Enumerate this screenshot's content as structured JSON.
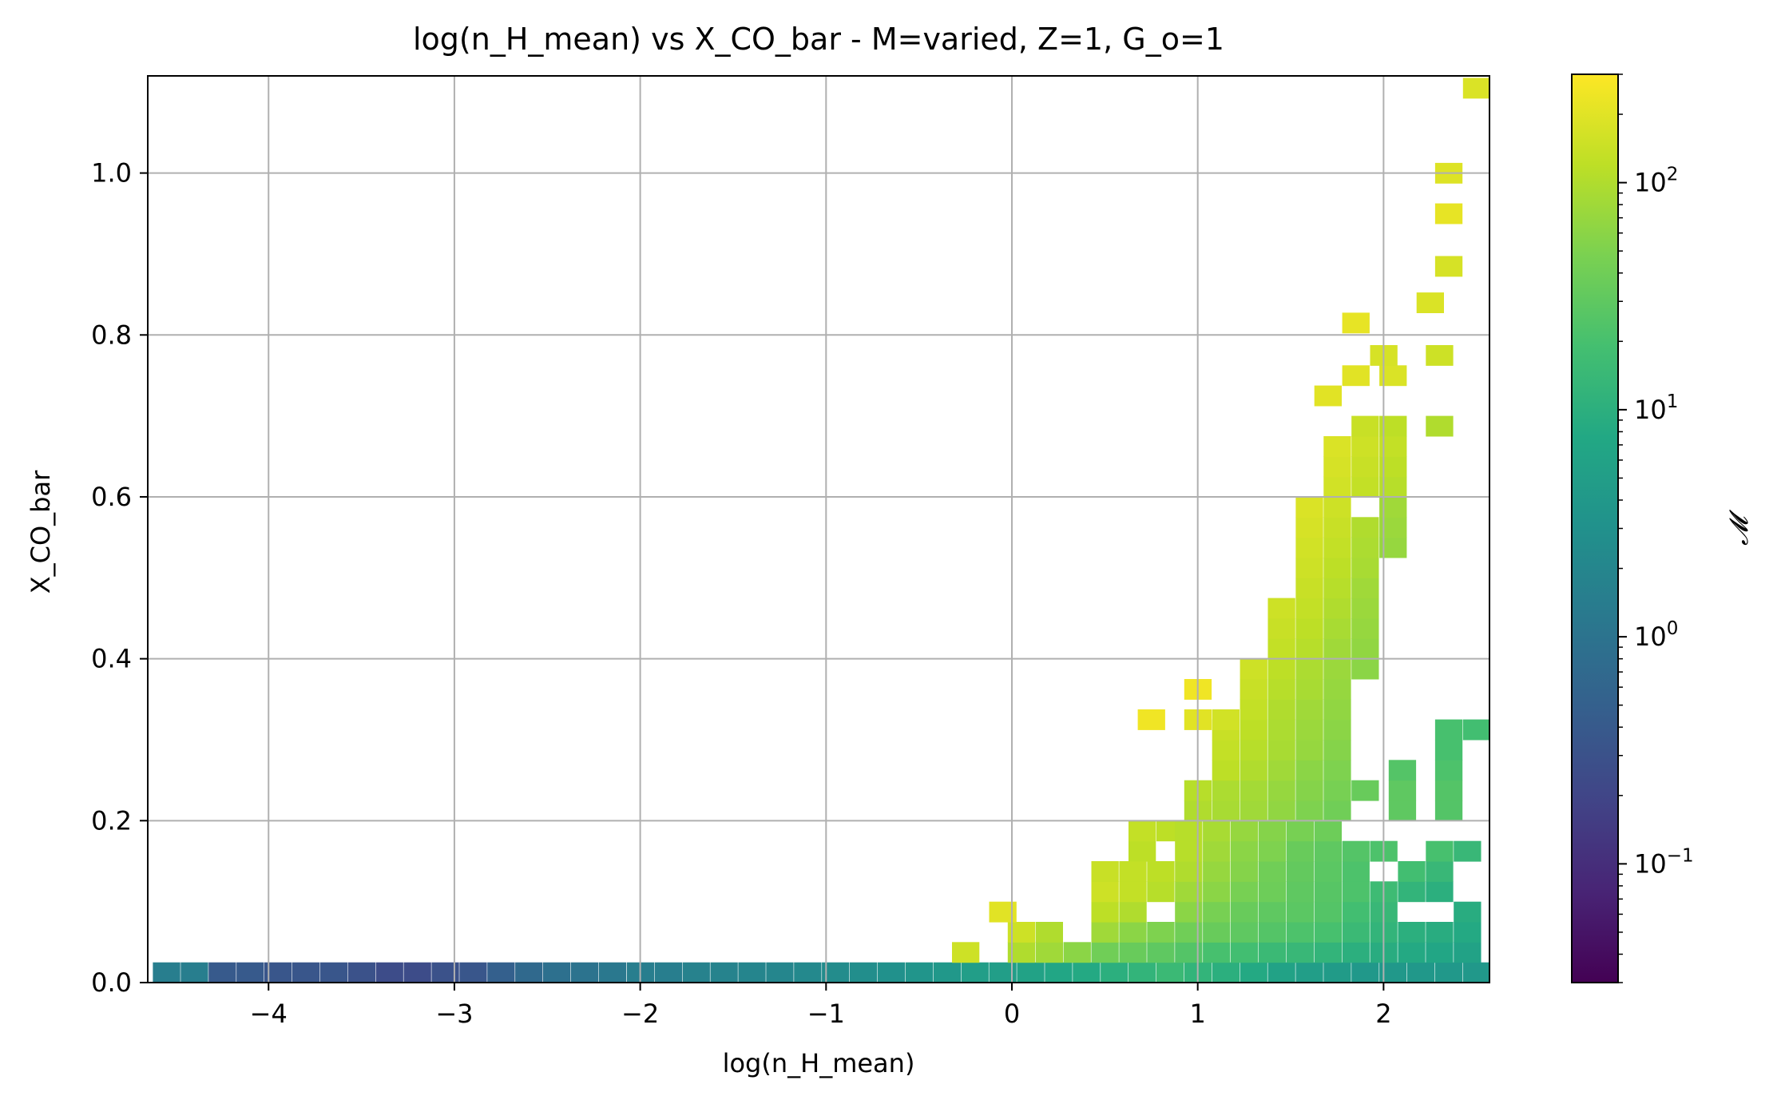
{
  "chart_data": {
    "type": "heatmap",
    "title": "log(n_H_mean) vs X_CO_bar - M=varied, Z=1, G_o=1",
    "xlabel": "log(n_H_mean)",
    "ylabel": "X_CO_bar",
    "colorbar_label": "𝓜",
    "colormap": "viridis",
    "color_scale": "log",
    "color_range": [
      0.03,
      300
    ],
    "grid": true,
    "xlim": [
      -4.65,
      2.57
    ],
    "ylim": [
      0.0,
      1.12
    ],
    "x_ticks": [
      -4,
      -3,
      -2,
      -1,
      0,
      1,
      2
    ],
    "x_tick_labels": [
      "−4",
      "−3",
      "−2",
      "−1",
      "0",
      "1",
      "2"
    ],
    "y_ticks": [
      0.0,
      0.2,
      0.4,
      0.6,
      0.8,
      1.0
    ],
    "y_tick_labels": [
      "0.0",
      "0.2",
      "0.4",
      "0.6",
      "0.8",
      "1.0"
    ],
    "colorbar_ticks": [
      {
        "value": 0.1,
        "base": "10",
        "exp": "−1"
      },
      {
        "value": 1,
        "base": "10",
        "exp": "0"
      },
      {
        "value": 10,
        "base": "10",
        "exp": "1"
      },
      {
        "value": 100,
        "base": "10",
        "exp": "2"
      }
    ],
    "bin_size": {
      "dx": 0.145,
      "dy": 0.025
    },
    "cells": [
      [
        -4.55,
        0.0125,
        1.5
      ],
      [
        -4.4,
        0.0125,
        1.5
      ],
      [
        -4.25,
        0.0125,
        0.4
      ],
      [
        -4.1,
        0.0125,
        0.4
      ],
      [
        -3.95,
        0.0125,
        0.35
      ],
      [
        -3.8,
        0.0125,
        0.35
      ],
      [
        -3.65,
        0.0125,
        0.35
      ],
      [
        -3.5,
        0.0125,
        0.3
      ],
      [
        -3.35,
        0.0125,
        0.25
      ],
      [
        -3.2,
        0.0125,
        0.25
      ],
      [
        -3.05,
        0.0125,
        0.3
      ],
      [
        -2.9,
        0.0125,
        0.35
      ],
      [
        -2.75,
        0.0125,
        0.5
      ],
      [
        -2.6,
        0.0125,
        0.7
      ],
      [
        -2.45,
        0.0125,
        0.9
      ],
      [
        -2.3,
        0.0125,
        1.0
      ],
      [
        -2.15,
        0.0125,
        1.2
      ],
      [
        -2.0,
        0.0125,
        1.5
      ],
      [
        -1.85,
        0.0125,
        1.5
      ],
      [
        -1.7,
        0.0125,
        1.7
      ],
      [
        -1.55,
        0.0125,
        1.8
      ],
      [
        -1.4,
        0.0125,
        1.9
      ],
      [
        -1.25,
        0.0125,
        2.0
      ],
      [
        -1.1,
        0.0125,
        2.2
      ],
      [
        -0.95,
        0.0125,
        2.5
      ],
      [
        -0.8,
        0.0125,
        2.7
      ],
      [
        -0.65,
        0.0125,
        3.0
      ],
      [
        -0.5,
        0.0125,
        3.5
      ],
      [
        -0.35,
        0.0125,
        4.0
      ],
      [
        -0.2,
        0.0125,
        5.0
      ],
      [
        -0.05,
        0.0125,
        5.0
      ],
      [
        0.1,
        0.0125,
        6.0
      ],
      [
        0.25,
        0.0125,
        7.0
      ],
      [
        0.4,
        0.0125,
        8.0
      ],
      [
        0.55,
        0.0125,
        10.0
      ],
      [
        0.7,
        0.0125,
        12.0
      ],
      [
        0.85,
        0.0125,
        15.0
      ],
      [
        1.0,
        0.0125,
        12.0
      ],
      [
        1.15,
        0.0125,
        10.0
      ],
      [
        1.3,
        0.0125,
        8.0
      ],
      [
        1.45,
        0.0125,
        6.0
      ],
      [
        1.6,
        0.0125,
        5.0
      ],
      [
        1.75,
        0.0125,
        4.5
      ],
      [
        1.9,
        0.0125,
        4.0
      ],
      [
        2.05,
        0.0125,
        4.0
      ],
      [
        2.2,
        0.0125,
        4.0
      ],
      [
        2.35,
        0.0125,
        4.0
      ],
      [
        2.5,
        0.0125,
        4.0
      ],
      [
        -0.25,
        0.0375,
        150
      ],
      [
        0.05,
        0.0375,
        100
      ],
      [
        0.2,
        0.0375,
        80
      ],
      [
        0.35,
        0.0375,
        60
      ],
      [
        0.5,
        0.0375,
        40
      ],
      [
        0.65,
        0.0375,
        35
      ],
      [
        0.8,
        0.0375,
        30
      ],
      [
        0.95,
        0.0375,
        25
      ],
      [
        1.1,
        0.0375,
        20
      ],
      [
        1.25,
        0.0375,
        18
      ],
      [
        1.4,
        0.0375,
        15
      ],
      [
        1.55,
        0.0375,
        14
      ],
      [
        1.7,
        0.0375,
        12
      ],
      [
        1.85,
        0.0375,
        10
      ],
      [
        2.0,
        0.0375,
        9
      ],
      [
        2.15,
        0.0375,
        8
      ],
      [
        2.3,
        0.0375,
        7
      ],
      [
        2.45,
        0.0375,
        6
      ],
      [
        0.05,
        0.0625,
        150
      ],
      [
        0.2,
        0.0625,
        100
      ],
      [
        0.5,
        0.0625,
        80
      ],
      [
        0.65,
        0.0625,
        60
      ],
      [
        0.8,
        0.0625,
        50
      ],
      [
        0.95,
        0.0625,
        40
      ],
      [
        1.1,
        0.0625,
        35
      ],
      [
        1.25,
        0.0625,
        30
      ],
      [
        1.4,
        0.0625,
        25
      ],
      [
        1.55,
        0.0625,
        22
      ],
      [
        1.7,
        0.0625,
        20
      ],
      [
        1.85,
        0.0625,
        15
      ],
      [
        2.0,
        0.0625,
        12
      ],
      [
        2.15,
        0.0625,
        10
      ],
      [
        2.3,
        0.0625,
        9
      ],
      [
        2.45,
        0.0625,
        8
      ],
      [
        -0.05,
        0.0875,
        200
      ],
      [
        0.5,
        0.0875,
        120
      ],
      [
        0.65,
        0.0875,
        100
      ],
      [
        0.95,
        0.0875,
        60
      ],
      [
        1.1,
        0.0875,
        45
      ],
      [
        1.25,
        0.0875,
        35
      ],
      [
        1.4,
        0.0875,
        30
      ],
      [
        1.55,
        0.0875,
        28
      ],
      [
        1.7,
        0.0875,
        25
      ],
      [
        1.85,
        0.0875,
        18
      ],
      [
        2.0,
        0.0875,
        14
      ],
      [
        2.45,
        0.0875,
        9
      ],
      [
        0.5,
        0.1125,
        150
      ],
      [
        0.65,
        0.1125,
        130
      ],
      [
        0.8,
        0.1125,
        110
      ],
      [
        0.95,
        0.1125,
        80
      ],
      [
        1.1,
        0.1125,
        60
      ],
      [
        1.25,
        0.1125,
        45
      ],
      [
        1.4,
        0.1125,
        38
      ],
      [
        1.55,
        0.1125,
        30
      ],
      [
        1.7,
        0.1125,
        26
      ],
      [
        1.85,
        0.1125,
        22
      ],
      [
        2.0,
        0.1125,
        16
      ],
      [
        2.15,
        0.1125,
        12
      ],
      [
        2.3,
        0.1125,
        10
      ],
      [
        0.5,
        0.1375,
        140
      ],
      [
        0.65,
        0.1375,
        130
      ],
      [
        0.8,
        0.1375,
        120
      ],
      [
        0.95,
        0.1375,
        100
      ],
      [
        1.1,
        0.1375,
        70
      ],
      [
        1.25,
        0.1375,
        55
      ],
      [
        1.4,
        0.1375,
        40
      ],
      [
        1.55,
        0.1375,
        32
      ],
      [
        1.7,
        0.1375,
        28
      ],
      [
        1.85,
        0.1375,
        22
      ],
      [
        2.15,
        0.1375,
        18
      ],
      [
        2.3,
        0.1375,
        14
      ],
      [
        0.7,
        0.1625,
        120
      ],
      [
        0.95,
        0.1625,
        110
      ],
      [
        1.1,
        0.1625,
        80
      ],
      [
        1.25,
        0.1625,
        60
      ],
      [
        1.4,
        0.1625,
        50
      ],
      [
        1.55,
        0.1625,
        35
      ],
      [
        1.7,
        0.1625,
        30
      ],
      [
        1.85,
        0.1625,
        25
      ],
      [
        2.0,
        0.1625,
        22
      ],
      [
        2.3,
        0.1625,
        20
      ],
      [
        2.45,
        0.1625,
        14
      ],
      [
        0.7,
        0.1875,
        130
      ],
      [
        0.85,
        0.1875,
        120
      ],
      [
        0.95,
        0.1875,
        110
      ],
      [
        1.1,
        0.1875,
        90
      ],
      [
        1.25,
        0.1875,
        70
      ],
      [
        1.4,
        0.1875,
        55
      ],
      [
        1.55,
        0.1875,
        45
      ],
      [
        1.7,
        0.1875,
        38
      ],
      [
        1.0,
        0.2125,
        100
      ],
      [
        1.15,
        0.2125,
        90
      ],
      [
        1.3,
        0.2125,
        80
      ],
      [
        1.45,
        0.2125,
        65
      ],
      [
        1.6,
        0.2125,
        50
      ],
      [
        1.75,
        0.2125,
        40
      ],
      [
        2.1,
        0.2125,
        30
      ],
      [
        2.35,
        0.2125,
        25
      ],
      [
        1.0,
        0.2375,
        110
      ],
      [
        1.15,
        0.2375,
        95
      ],
      [
        1.3,
        0.2375,
        85
      ],
      [
        1.45,
        0.2375,
        70
      ],
      [
        1.6,
        0.2375,
        55
      ],
      [
        1.75,
        0.2375,
        45
      ],
      [
        1.9,
        0.2375,
        35
      ],
      [
        2.1,
        0.2375,
        30
      ],
      [
        2.35,
        0.2375,
        25
      ],
      [
        1.15,
        0.2625,
        120
      ],
      [
        1.3,
        0.2625,
        100
      ],
      [
        1.45,
        0.2625,
        80
      ],
      [
        1.6,
        0.2625,
        60
      ],
      [
        1.75,
        0.2625,
        50
      ],
      [
        2.1,
        0.2625,
        25
      ],
      [
        2.35,
        0.2625,
        22
      ],
      [
        1.15,
        0.2875,
        130
      ],
      [
        1.3,
        0.2875,
        110
      ],
      [
        1.45,
        0.2875,
        90
      ],
      [
        1.6,
        0.2875,
        70
      ],
      [
        1.75,
        0.2875,
        55
      ],
      [
        2.35,
        0.2875,
        20
      ],
      [
        1.15,
        0.3125,
        140
      ],
      [
        1.3,
        0.3125,
        120
      ],
      [
        1.45,
        0.3125,
        95
      ],
      [
        1.6,
        0.3125,
        75
      ],
      [
        1.75,
        0.3125,
        60
      ],
      [
        2.35,
        0.3125,
        20
      ],
      [
        2.5,
        0.3125,
        18
      ],
      [
        0.75,
        0.325,
        250
      ],
      [
        1.0,
        0.325,
        200
      ],
      [
        1.15,
        0.325,
        160
      ],
      [
        1.3,
        0.3375,
        130
      ],
      [
        1.45,
        0.3375,
        100
      ],
      [
        1.6,
        0.3375,
        80
      ],
      [
        1.75,
        0.3375,
        65
      ],
      [
        1.0,
        0.3625,
        250
      ],
      [
        1.3,
        0.3625,
        140
      ],
      [
        1.45,
        0.3625,
        110
      ],
      [
        1.6,
        0.3625,
        90
      ],
      [
        1.75,
        0.3625,
        70
      ],
      [
        1.3,
        0.3875,
        150
      ],
      [
        1.45,
        0.3875,
        120
      ],
      [
        1.6,
        0.3875,
        95
      ],
      [
        1.75,
        0.3875,
        75
      ],
      [
        1.9,
        0.3875,
        60
      ],
      [
        1.45,
        0.4125,
        130
      ],
      [
        1.6,
        0.4125,
        110
      ],
      [
        1.75,
        0.4125,
        80
      ],
      [
        1.9,
        0.4125,
        65
      ],
      [
        1.45,
        0.4375,
        140
      ],
      [
        1.6,
        0.4375,
        120
      ],
      [
        1.75,
        0.4375,
        90
      ],
      [
        1.9,
        0.4375,
        70
      ],
      [
        1.45,
        0.4625,
        150
      ],
      [
        1.6,
        0.4625,
        130
      ],
      [
        1.75,
        0.4625,
        100
      ],
      [
        1.9,
        0.4625,
        75
      ],
      [
        1.6,
        0.4875,
        140
      ],
      [
        1.75,
        0.4875,
        110
      ],
      [
        1.9,
        0.4875,
        80
      ],
      [
        1.6,
        0.5125,
        150
      ],
      [
        1.75,
        0.5125,
        120
      ],
      [
        1.9,
        0.5125,
        90
      ],
      [
        1.6,
        0.5375,
        160
      ],
      [
        1.75,
        0.5375,
        130
      ],
      [
        1.9,
        0.5375,
        95
      ],
      [
        2.05,
        0.5375,
        70
      ],
      [
        1.6,
        0.5625,
        170
      ],
      [
        1.75,
        0.5625,
        140
      ],
      [
        1.9,
        0.5625,
        100
      ],
      [
        2.05,
        0.5625,
        75
      ],
      [
        1.6,
        0.5875,
        180
      ],
      [
        1.75,
        0.5875,
        150
      ],
      [
        2.05,
        0.5875,
        80
      ],
      [
        1.75,
        0.6125,
        160
      ],
      [
        1.9,
        0.6125,
        130
      ],
      [
        2.05,
        0.6125,
        110
      ],
      [
        1.75,
        0.6375,
        170
      ],
      [
        1.9,
        0.6375,
        140
      ],
      [
        2.05,
        0.6375,
        120
      ],
      [
        1.75,
        0.6625,
        180
      ],
      [
        1.9,
        0.6625,
        150
      ],
      [
        2.05,
        0.6625,
        130
      ],
      [
        1.9,
        0.6875,
        140
      ],
      [
        2.05,
        0.6875,
        120
      ],
      [
        2.3,
        0.6875,
        100
      ],
      [
        1.7,
        0.725,
        200
      ],
      [
        1.85,
        0.75,
        200
      ],
      [
        2.05,
        0.75,
        180
      ],
      [
        2.0,
        0.775,
        170
      ],
      [
        2.3,
        0.775,
        150
      ],
      [
        1.85,
        0.815,
        220
      ],
      [
        2.25,
        0.84,
        180
      ],
      [
        2.35,
        0.885,
        170
      ],
      [
        2.35,
        0.95,
        220
      ],
      [
        2.35,
        1.0,
        190
      ],
      [
        2.5,
        1.105,
        180
      ]
    ]
  }
}
